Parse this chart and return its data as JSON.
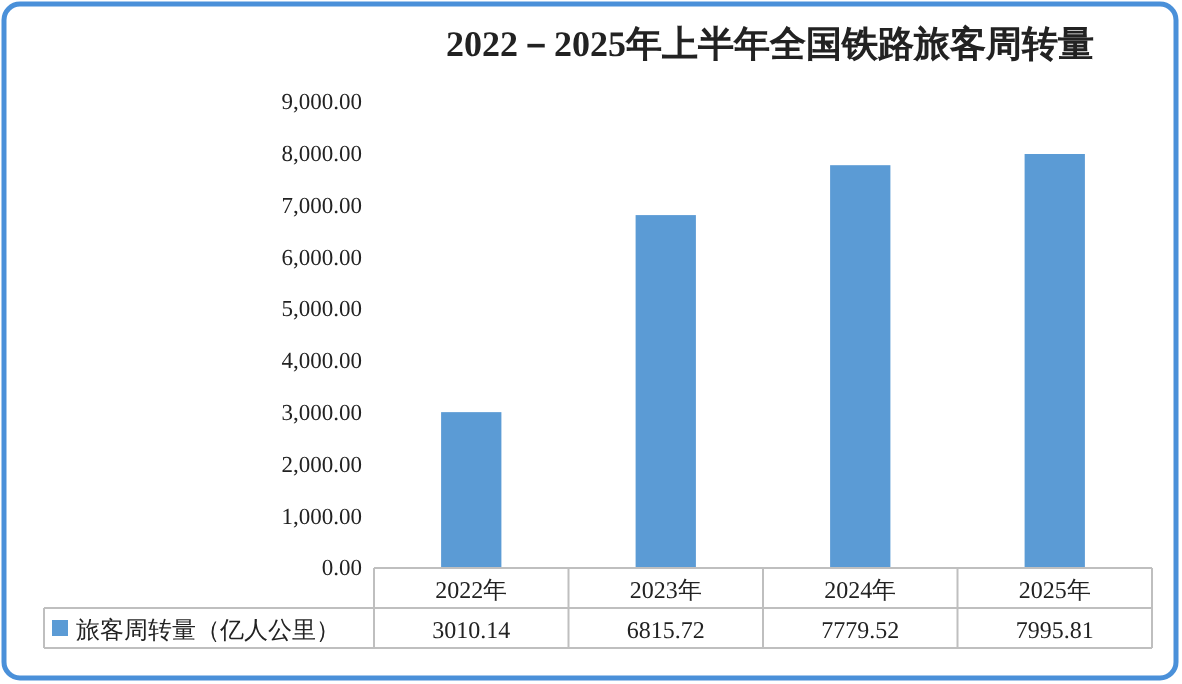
{
  "chart_data": {
    "type": "bar",
    "title": "2022－2025年上半年全国铁路旅客周转量",
    "categories": [
      "2022年",
      "2023年",
      "2024年",
      "2025年"
    ],
    "series": [
      {
        "name": "旅客周转量（亿人公里）",
        "color": "#5b9bd5",
        "values": [
          3010.14,
          6815.72,
          7779.52,
          7995.81
        ]
      }
    ],
    "ylim": [
      0,
      9000
    ],
    "yticks": [
      {
        "value": 0,
        "label": "0.00"
      },
      {
        "value": 1000,
        "label": "1,000.00"
      },
      {
        "value": 2000,
        "label": "2,000.00"
      },
      {
        "value": 3000,
        "label": "3,000.00"
      },
      {
        "value": 4000,
        "label": "4,000.00"
      },
      {
        "value": 5000,
        "label": "5,000.00"
      },
      {
        "value": 6000,
        "label": "6,000.00"
      },
      {
        "value": 7000,
        "label": "7,000.00"
      },
      {
        "value": 8000,
        "label": "8,000.00"
      },
      {
        "value": 9000,
        "label": "9,000.00"
      }
    ],
    "data_labels": true,
    "legend": "bottom left",
    "grid": false
  }
}
